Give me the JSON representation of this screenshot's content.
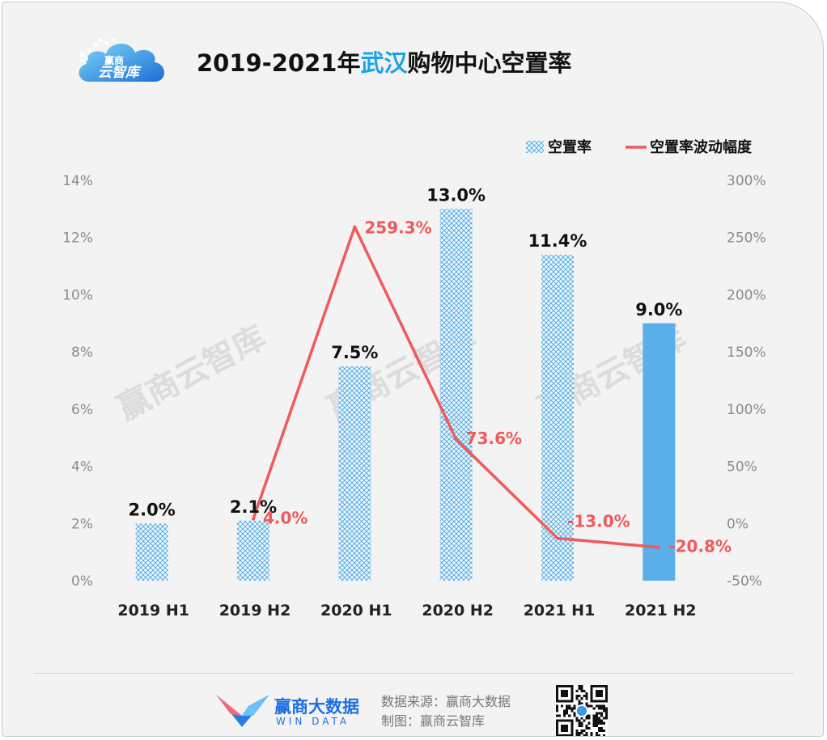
{
  "header": {
    "title_pre": "2019-2021年",
    "title_highlight": "武汉",
    "title_post": "购物中心空置率",
    "logo_text_top": "赢商",
    "logo_text_bottom": "云智库"
  },
  "footer": {
    "brand_cn": "赢商大数据",
    "brand_en": "WIN DATA",
    "source_line": "数据来源：赢商大数据",
    "maker_line": "制图：赢商云智库"
  },
  "watermark": "赢商云智库",
  "colors": {
    "bar_hatch": "#4aa6e0",
    "bar_solid": "#5aaeea",
    "line": "#f05a5a",
    "title_highlight": "#1aa3e8"
  },
  "chart_data": {
    "type": "bar+line",
    "categories": [
      "2019 H1",
      "2019 H2",
      "2020 H1",
      "2020 H2",
      "2021 H1",
      "2021 H2"
    ],
    "series": [
      {
        "name": "空置率",
        "type": "bar",
        "axis": "left",
        "values": [
          2.0,
          2.1,
          7.5,
          13.0,
          11.4,
          9.0
        ],
        "labels": [
          "2.0%",
          "2.1%",
          "7.5%",
          "13.0%",
          "11.4%",
          "9.0%"
        ]
      },
      {
        "name": "空置率波动幅度",
        "type": "line",
        "axis": "right",
        "values": [
          null,
          4.0,
          259.3,
          73.6,
          -13.0,
          -20.8
        ],
        "labels": [
          "",
          "4.0%",
          "259.3%",
          "73.6%",
          "-13.0%",
          "-20.8%"
        ]
      }
    ],
    "y_left": {
      "min": 0,
      "max": 14,
      "ticks": [
        "0%",
        "2%",
        "4%",
        "6%",
        "8%",
        "10%",
        "12%",
        "14%"
      ]
    },
    "y_right": {
      "min": -50,
      "max": 300,
      "ticks": [
        "-50%",
        "0%",
        "50%",
        "100%",
        "150%",
        "200%",
        "250%",
        "300%"
      ]
    },
    "legend": {
      "position": "top-right",
      "items": [
        "空置率",
        "空置率波动幅度"
      ]
    }
  }
}
